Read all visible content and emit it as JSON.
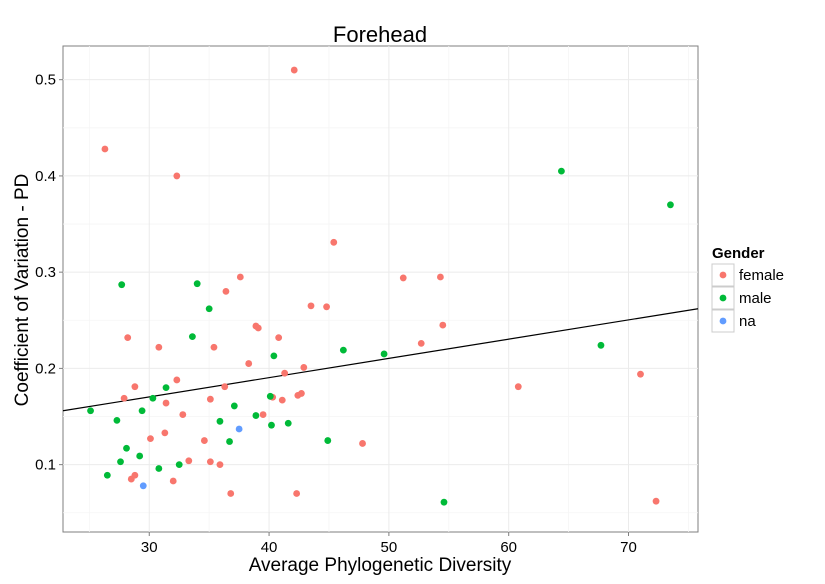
{
  "chart_data": {
    "type": "scatter",
    "title": "Forehead",
    "xlabel": "Average Phylogenetic Diversity",
    "ylabel": "Coefficient of Variation - PD",
    "xlim": [
      22.8,
      75.8
    ],
    "ylim": [
      0.03,
      0.535
    ],
    "x_ticks": [
      30,
      40,
      50,
      60,
      70
    ],
    "y_ticks": [
      0.1,
      0.2,
      0.3,
      0.4,
      0.5
    ],
    "x_tick_labels": [
      "30",
      "40",
      "50",
      "60",
      "70"
    ],
    "y_tick_labels": [
      "0.1",
      "0.2",
      "0.3",
      "0.4",
      "0.5"
    ],
    "grid": true,
    "legend": {
      "title": "Gender",
      "position": "right",
      "entries": [
        {
          "label": "female",
          "color": "#F8766D"
        },
        {
          "label": "male",
          "color": "#00BA38"
        },
        {
          "label": "na",
          "color": "#619CFF"
        }
      ]
    },
    "trend_line": {
      "x": [
        22.8,
        75.8
      ],
      "y": [
        0.156,
        0.262
      ],
      "color": "#000000"
    },
    "series": [
      {
        "name": "female",
        "color": "#F8766D",
        "points": [
          [
            26.3,
            0.428
          ],
          [
            32.3,
            0.4
          ],
          [
            42.1,
            0.51
          ],
          [
            45.4,
            0.331
          ],
          [
            28.2,
            0.232
          ],
          [
            27.9,
            0.169
          ],
          [
            28.8,
            0.181
          ],
          [
            28.5,
            0.085
          ],
          [
            28.8,
            0.089
          ],
          [
            30.1,
            0.127
          ],
          [
            30.8,
            0.222
          ],
          [
            31.4,
            0.164
          ],
          [
            31.3,
            0.133
          ],
          [
            32.0,
            0.083
          ],
          [
            32.3,
            0.188
          ],
          [
            32.8,
            0.152
          ],
          [
            33.3,
            0.104
          ],
          [
            34.6,
            0.125
          ],
          [
            35.1,
            0.103
          ],
          [
            35.1,
            0.168
          ],
          [
            35.4,
            0.222
          ],
          [
            35.9,
            0.1
          ],
          [
            36.3,
            0.181
          ],
          [
            36.4,
            0.28
          ],
          [
            36.8,
            0.07
          ],
          [
            37.6,
            0.295
          ],
          [
            38.3,
            0.205
          ],
          [
            38.9,
            0.244
          ],
          [
            39.1,
            0.242
          ],
          [
            39.5,
            0.152
          ],
          [
            40.3,
            0.17
          ],
          [
            40.8,
            0.232
          ],
          [
            41.1,
            0.167
          ],
          [
            41.3,
            0.195
          ],
          [
            42.3,
            0.07
          ],
          [
            42.4,
            0.172
          ],
          [
            42.7,
            0.174
          ],
          [
            42.9,
            0.201
          ],
          [
            43.5,
            0.265
          ],
          [
            44.8,
            0.264
          ],
          [
            47.8,
            0.122
          ],
          [
            51.2,
            0.294
          ],
          [
            52.7,
            0.226
          ],
          [
            54.3,
            0.295
          ],
          [
            54.5,
            0.245
          ],
          [
            60.8,
            0.181
          ],
          [
            71.0,
            0.194
          ],
          [
            72.3,
            0.062
          ]
        ]
      },
      {
        "name": "male",
        "color": "#00BA38",
        "points": [
          [
            25.1,
            0.156
          ],
          [
            26.5,
            0.089
          ],
          [
            27.3,
            0.146
          ],
          [
            27.6,
            0.103
          ],
          [
            27.7,
            0.287
          ],
          [
            28.1,
            0.117
          ],
          [
            29.2,
            0.109
          ],
          [
            29.4,
            0.156
          ],
          [
            30.3,
            0.169
          ],
          [
            30.8,
            0.096
          ],
          [
            31.4,
            0.18
          ],
          [
            32.5,
            0.1
          ],
          [
            33.6,
            0.233
          ],
          [
            34.0,
            0.288
          ],
          [
            35.0,
            0.262
          ],
          [
            35.9,
            0.145
          ],
          [
            36.7,
            0.124
          ],
          [
            37.1,
            0.161
          ],
          [
            38.9,
            0.151
          ],
          [
            40.1,
            0.171
          ],
          [
            40.2,
            0.141
          ],
          [
            40.4,
            0.213
          ],
          [
            41.6,
            0.143
          ],
          [
            44.9,
            0.125
          ],
          [
            46.2,
            0.219
          ],
          [
            49.6,
            0.215
          ],
          [
            54.6,
            0.061
          ],
          [
            64.4,
            0.405
          ],
          [
            67.7,
            0.224
          ],
          [
            73.5,
            0.37
          ]
        ]
      },
      {
        "name": "na",
        "color": "#619CFF",
        "points": [
          [
            29.5,
            0.078
          ],
          [
            37.5,
            0.137
          ]
        ]
      }
    ]
  }
}
